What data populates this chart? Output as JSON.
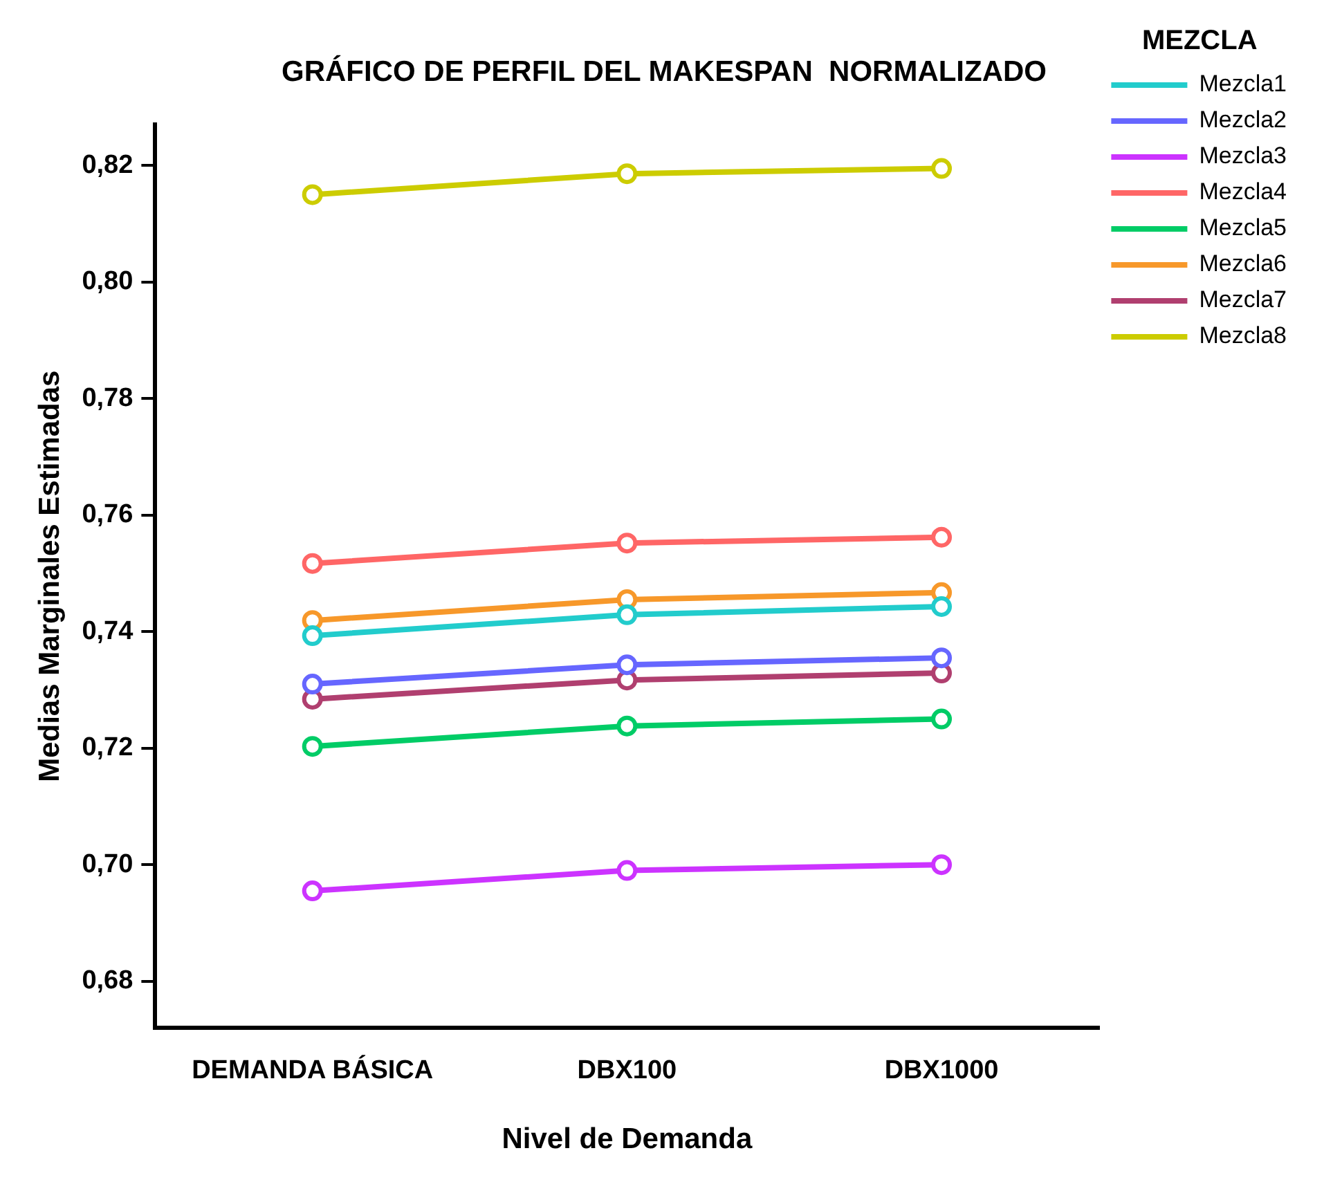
{
  "chart_data": {
    "type": "line",
    "title": "GRÁFICO DE PERFIL DEL MAKESPAN  NORMALIZADO",
    "xlabel": "Nivel de Demanda",
    "ylabel": "Medias Marginales Estimadas",
    "legend_title": "MEZCLA",
    "legend": "right",
    "grid": false,
    "marker": "circle",
    "line_style": "solid",
    "categories": [
      "DEMANDA BÁSICA",
      "DBX100",
      "DBX1000"
    ],
    "ylim": [
      0.672,
      0.827
    ],
    "yticks": [
      {
        "value": 0.68,
        "label": "0,68"
      },
      {
        "value": 0.7,
        "label": "0,70"
      },
      {
        "value": 0.72,
        "label": "0,72"
      },
      {
        "value": 0.74,
        "label": "0,74"
      },
      {
        "value": 0.76,
        "label": "0,76"
      },
      {
        "value": 0.78,
        "label": "0,78"
      },
      {
        "value": 0.8,
        "label": "0,80"
      },
      {
        "value": 0.82,
        "label": "0,82"
      }
    ],
    "series": [
      {
        "name": "Mezcla1",
        "color": "#22cccc",
        "values": [
          0.7393,
          0.7429,
          0.7443
        ]
      },
      {
        "name": "Mezcla2",
        "color": "#6666ff",
        "values": [
          0.731,
          0.7343,
          0.7355
        ]
      },
      {
        "name": "Mezcla3",
        "color": "#cc33ff",
        "values": [
          0.6955,
          0.699,
          0.7
        ]
      },
      {
        "name": "Mezcla4",
        "color": "#ff6666",
        "values": [
          0.7517,
          0.7552,
          0.7562
        ]
      },
      {
        "name": "Mezcla5",
        "color": "#00cc66",
        "values": [
          0.7203,
          0.7238,
          0.725
        ]
      },
      {
        "name": "Mezcla6",
        "color": "#f7982a",
        "values": [
          0.7419,
          0.7455,
          0.7467
        ]
      },
      {
        "name": "Mezcla7",
        "color": "#b03f6f",
        "values": [
          0.7284,
          0.7317,
          0.7329
        ]
      },
      {
        "name": "Mezcla8",
        "color": "#cccc00",
        "values": [
          0.815,
          0.8186,
          0.8195
        ]
      }
    ]
  }
}
